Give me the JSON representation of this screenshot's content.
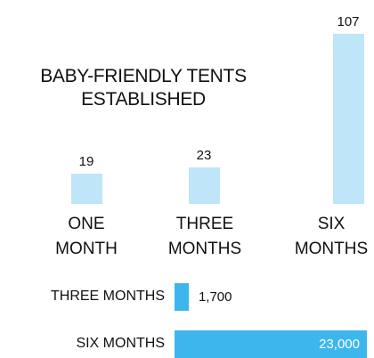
{
  "chart_data": [
    {
      "type": "bar",
      "title": "BABY-FRIENDLY TENTS ESTABLISHED",
      "categories": [
        "ONE MONTH",
        "THREE MONTHS",
        "SIX MONTHS"
      ],
      "values": [
        19,
        23,
        107
      ],
      "color": "#bfe5f8"
    },
    {
      "type": "hbar",
      "categories": [
        "THREE MONTHS",
        "SIX MONTHS"
      ],
      "values": [
        1700,
        23000
      ],
      "value_labels": [
        "1,700",
        "23,000"
      ],
      "color": "#3db6ee"
    }
  ]
}
